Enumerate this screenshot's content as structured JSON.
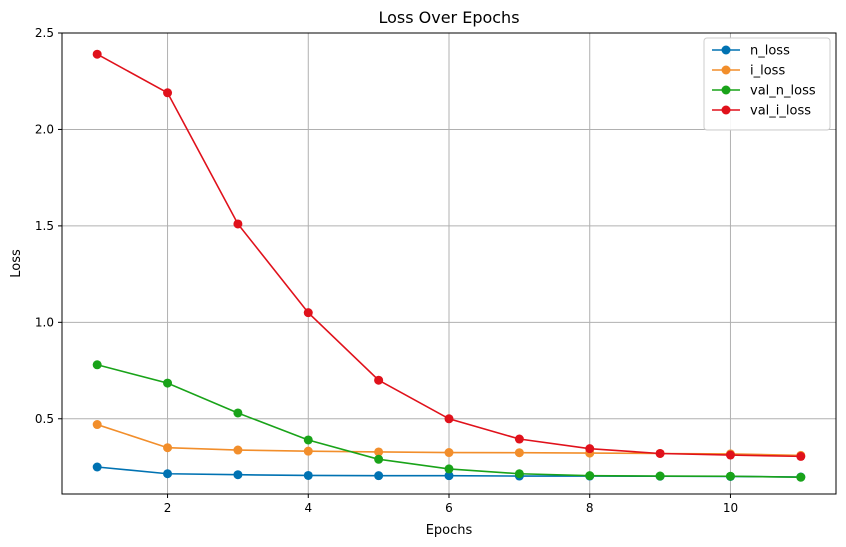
{
  "chart_data": {
    "type": "line",
    "title": "Loss Over Epochs",
    "xlabel": "Epochs",
    "ylabel": "Loss",
    "xlim": [
      0.5,
      11.5
    ],
    "ylim": [
      0.11,
      2.5
    ],
    "xticks": [
      2,
      4,
      6,
      8,
      10
    ],
    "xtick_labels": [
      "2",
      "4",
      "6",
      "8",
      "10"
    ],
    "yticks": [
      0.5,
      1.0,
      1.5,
      2.0,
      2.5
    ],
    "ytick_labels": [
      "0.5",
      "1.0",
      "1.5",
      "2.0",
      "2.5"
    ],
    "grid": true,
    "legend_position": "top-right",
    "x": [
      1,
      2,
      3,
      4,
      5,
      6,
      7,
      8,
      9,
      10,
      11
    ],
    "series": [
      {
        "name": "n_loss",
        "color": "#0072b2",
        "values": [
          0.25,
          0.215,
          0.21,
          0.206,
          0.205,
          0.205,
          0.203,
          0.203,
          0.202,
          0.201,
          0.198
        ]
      },
      {
        "name": "i_loss",
        "color": "#f28e2b",
        "values": [
          0.47,
          0.35,
          0.338,
          0.332,
          0.328,
          0.325,
          0.324,
          0.322,
          0.32,
          0.318,
          0.31
        ]
      },
      {
        "name": "val_n_loss",
        "color": "#19a319",
        "values": [
          0.78,
          0.685,
          0.53,
          0.39,
          0.29,
          0.24,
          0.215,
          0.205,
          0.203,
          0.202,
          0.197
        ]
      },
      {
        "name": "val_i_loss",
        "color": "#e0111b",
        "values": [
          2.39,
          2.19,
          1.51,
          1.05,
          0.7,
          0.5,
          0.395,
          0.345,
          0.32,
          0.312,
          0.305
        ]
      }
    ]
  }
}
